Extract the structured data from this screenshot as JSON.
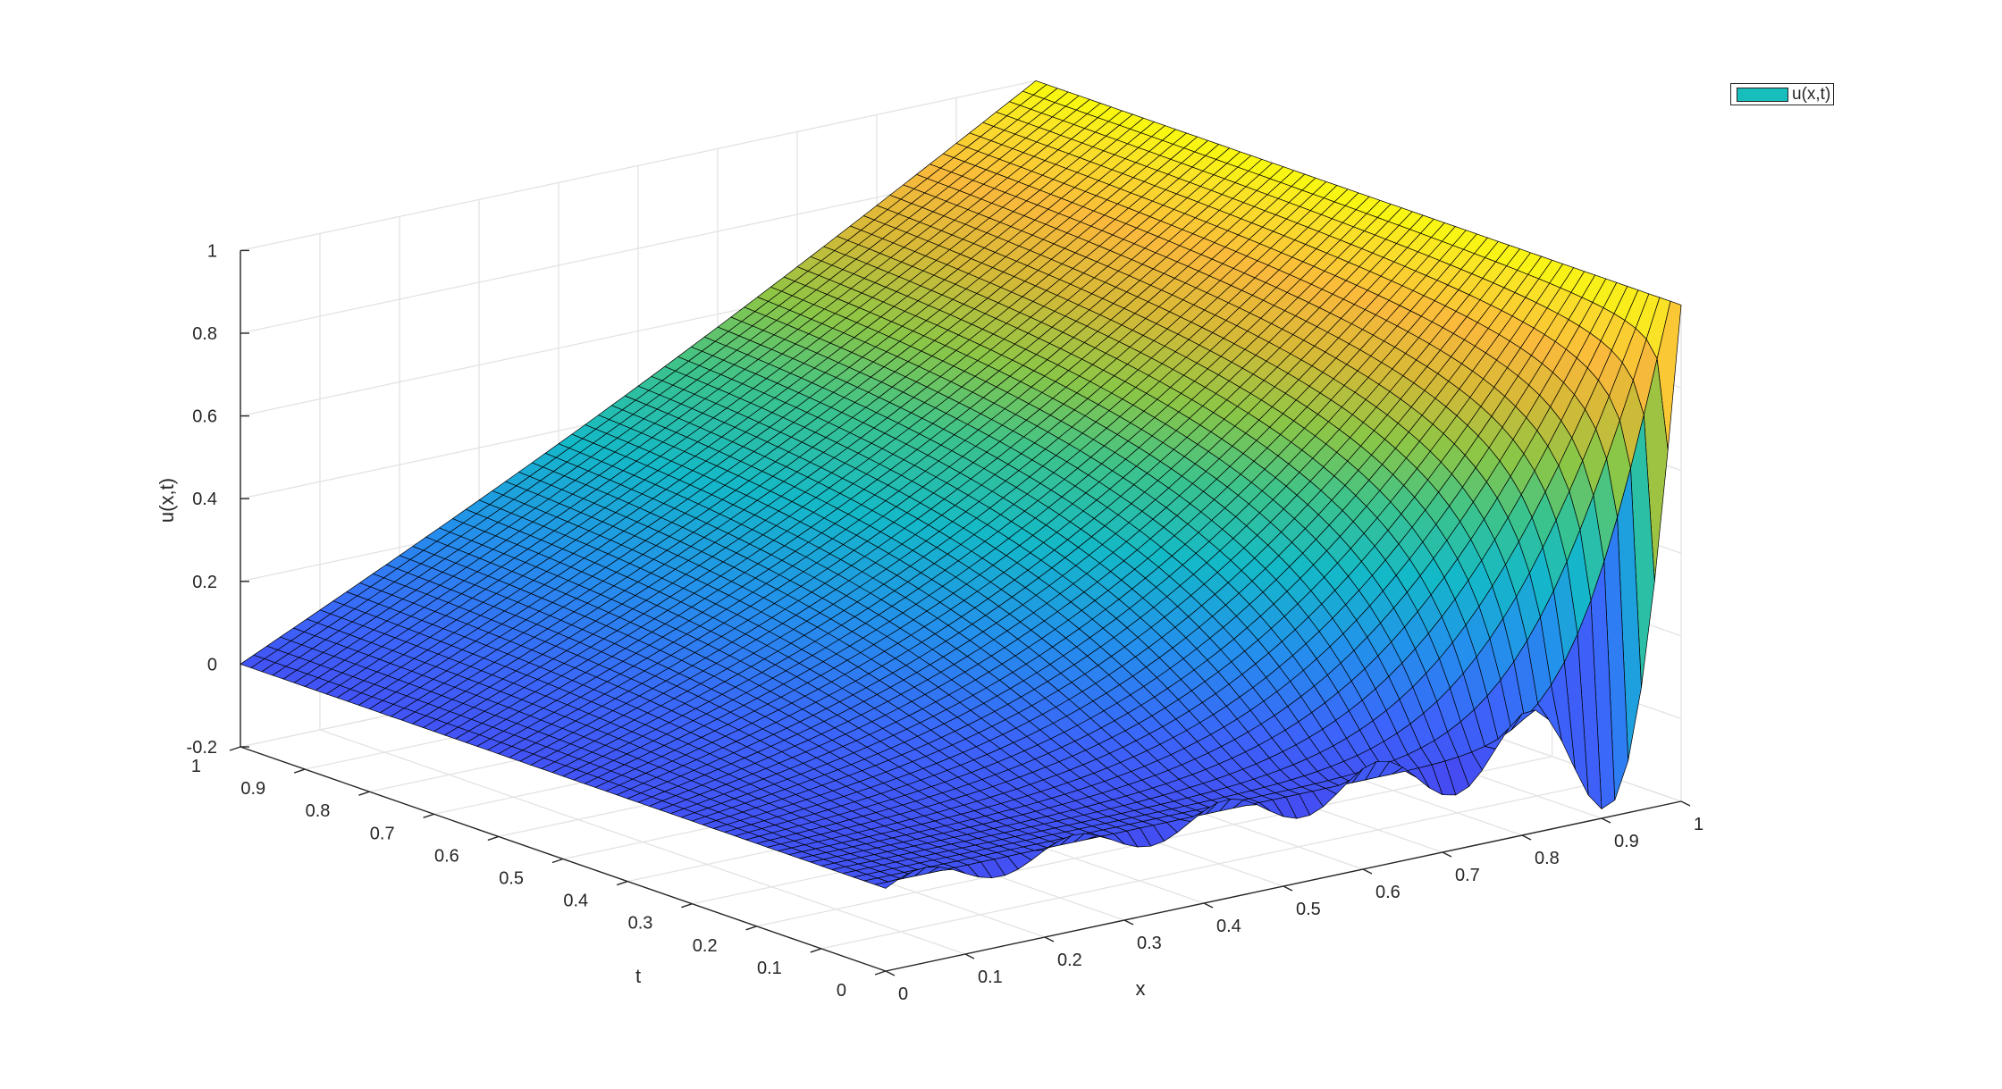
{
  "chart_data": {
    "type": "surface",
    "title": "",
    "xlabel": "x",
    "ylabel": "t",
    "zlabel": "u(x,t)",
    "xlim": [
      0,
      1
    ],
    "ylim": [
      0,
      1
    ],
    "zlim": [
      -0.2,
      1
    ],
    "xticks": [
      "0",
      "0.1",
      "0.2",
      "0.3",
      "0.4",
      "0.5",
      "0.6",
      "0.7",
      "0.8",
      "0.9",
      "1"
    ],
    "yticks": [
      "0",
      "0.1",
      "0.2",
      "0.3",
      "0.4",
      "0.5",
      "0.6",
      "0.7",
      "0.8",
      "0.9",
      "1"
    ],
    "zticks": [
      "-0.2",
      "0",
      "0.2",
      "0.4",
      "0.6",
      "0.8",
      "1"
    ],
    "grid": true,
    "colormap": "parula",
    "edge_color": "#000000",
    "observed_values": {
      "u_at_x0": 0,
      "u_at_x1": 1,
      "u_at_t1": "u = x",
      "u_at_t0": "about 0, with ripples; lowest dip near x = 0.95"
    },
    "legend": {
      "entries": [
        "u(x,t)"
      ],
      "position": "top-right",
      "swatch_color": "#17bebb"
    }
  }
}
